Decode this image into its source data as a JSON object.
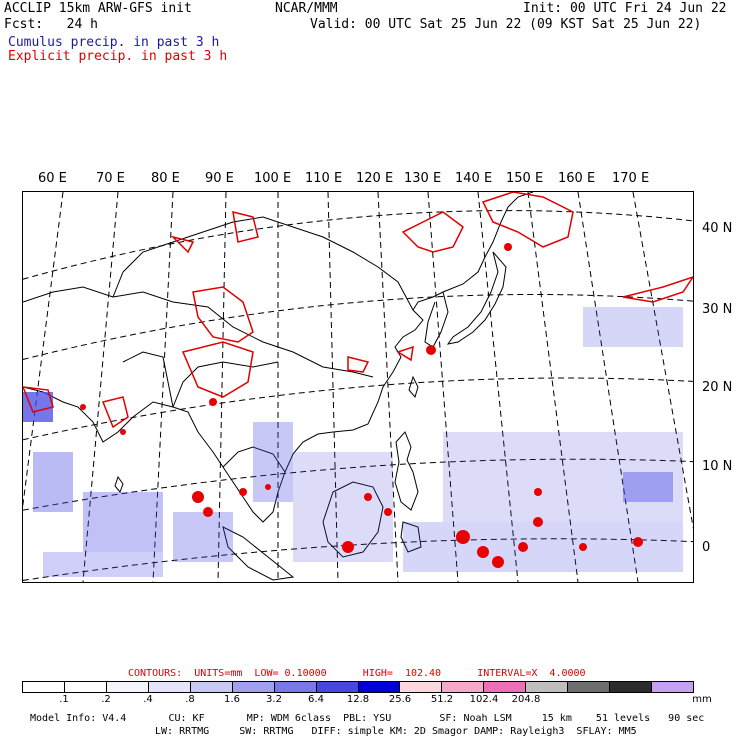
{
  "header": {
    "line1_left": "ACCLIP 15km ARW-GFS init",
    "line1_center": "NCAR/MMM",
    "line1_right": "Init: 00 UTC Fri 24 Jun 22",
    "line2_left": "Fcst:   24 h",
    "line2_right": "Valid: 00 UTC Sat 25 Jun 22 (09 KST Sat 25 Jun 22)",
    "cumulus": "Cumulus precip. in past 3 h",
    "explicit": "Explicit precip. in past 3 h",
    "cumulus_color": "#1a1aa8",
    "explicit_color": "#e00000"
  },
  "map": {
    "lon_labels": [
      "60 E",
      "70 E",
      "80 E",
      "90 E",
      "100 E",
      "110 E",
      "120 E",
      "130 E",
      "140 E",
      "150 E",
      "160 E",
      "170 E"
    ],
    "lat_labels": [
      "40 N",
      "30 N",
      "20 N",
      "10 N",
      "0"
    ]
  },
  "contours": {
    "text": "CONTOURS:  UNITS=mm  LOW= 0.10000      HIGH=  102.40      INTERVAL=X  4.0000",
    "color": "#e00000"
  },
  "legend": {
    "colors": [
      "#ffffff",
      "#ffffff",
      "#f4f4ff",
      "#e4e4fb",
      "#c8c8f5",
      "#a0a0ee",
      "#7878e6",
      "#4646e0",
      "#0000d8",
      "#fcd8dc",
      "#f6a8c8",
      "#ec70b8",
      "#bebebe",
      "#6e6e6e",
      "#2c2c2c",
      "#c8a0f0"
    ],
    "ticks": [
      ".1",
      ".2",
      ".4",
      ".8",
      "1.6",
      "3.2",
      "6.4",
      "12.8",
      "25.6",
      "51.2",
      "102.4",
      "204.8"
    ],
    "units": "mm"
  },
  "footer": {
    "line1": "Model Info: V4.4       CU: KF       MP: WDM 6class  PBL: YSU        SF: Noah LSM     15 km    51 levels   90 sec",
    "line2": "LW: RRTMG     SW: RRTMG   DIFF: simple KM: 2D Smagor DAMP: Rayleigh3  SFLAY: MM5"
  }
}
